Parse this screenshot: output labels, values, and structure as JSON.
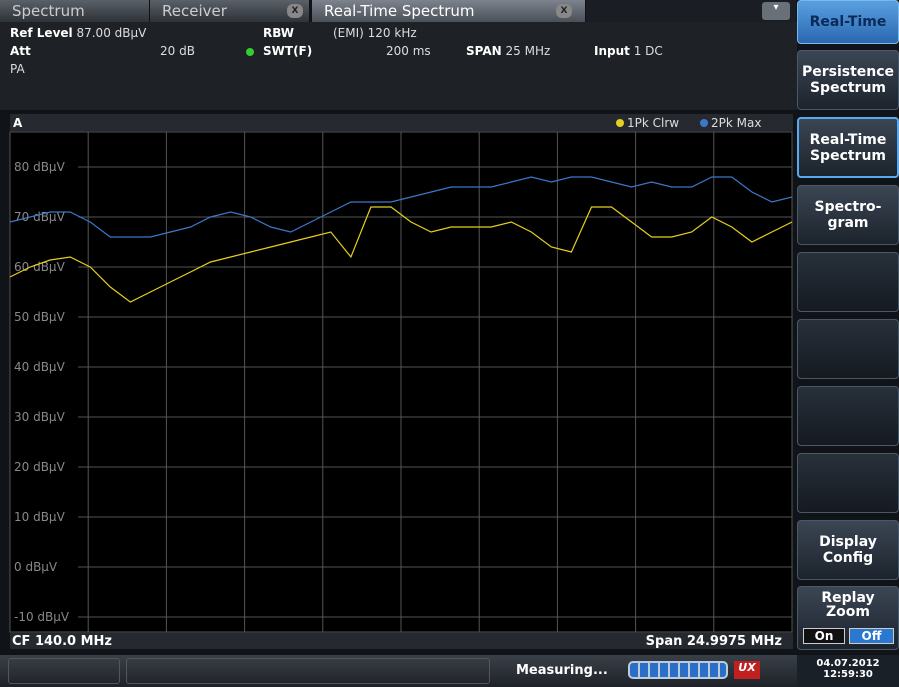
{
  "tabs": [
    "Spectrum",
    "Receiver",
    "Real-Time Spectrum"
  ],
  "settings": [
    {
      "label": "Ref Level",
      "value": "87.00 dBµV"
    },
    {
      "label": "Att",
      "value": "20 dB"
    },
    {
      "label": "RBW",
      "value": "(EMI) 120 kHz"
    },
    {
      "label": "SWT(F)",
      "value": "200 ms"
    },
    {
      "label": "SPAN",
      "value": "25 MHz"
    },
    {
      "label": "Input",
      "value": "1 DC"
    }
  ],
  "preamp": "PA",
  "chart_data": {
    "type": "line",
    "title": "A",
    "series": [
      {
        "name": "1Pk Clrw",
        "color": "#e6cf1e",
        "values": [
          58,
          60,
          61.4,
          62,
          60,
          56,
          53,
          55,
          57,
          59,
          61,
          62,
          63,
          64,
          65,
          66,
          67,
          62,
          72,
          72,
          69,
          67,
          68,
          68,
          68,
          69,
          67,
          64,
          63,
          72,
          72,
          69,
          66,
          66,
          67,
          70,
          68,
          65,
          67,
          69
        ]
      },
      {
        "name": "2Pk Max",
        "color": "#3b78c9",
        "values": [
          69,
          70,
          71,
          71,
          69,
          66,
          66,
          66,
          67,
          68,
          70,
          71,
          70,
          68,
          67,
          69,
          71,
          73,
          73,
          73,
          74,
          75,
          76,
          76,
          76,
          77,
          78,
          77,
          78,
          78,
          77,
          76,
          77,
          76,
          76,
          78,
          78,
          75,
          73,
          74
        ]
      }
    ],
    "ylim": [
      -13,
      87
    ],
    "yticks": [
      {
        "value": 80,
        "label": "80 dBµV"
      },
      {
        "value": 70,
        "label": "70 dBµV"
      },
      {
        "value": 60,
        "label": "60 dBµV"
      },
      {
        "value": 50,
        "label": "50 dBµV"
      },
      {
        "value": 40,
        "label": "40 dBµV"
      },
      {
        "value": 30,
        "label": "30 dBµV"
      },
      {
        "value": 20,
        "label": "20 dBµV"
      },
      {
        "value": 10,
        "label": "10 dBµV"
      },
      {
        "value": 0,
        "label": "0 dBµV"
      },
      {
        "value": -10,
        "label": "-10 dBµV"
      }
    ],
    "grid": true
  },
  "footer_left": "CF 140.0 MHz",
  "footer_right": "Span 24.9975 MHz",
  "menu_title": "Real-Time",
  "softkeys": [
    [
      "Persistence",
      "Spectrum"
    ],
    [
      "Real-Time",
      "Spectrum"
    ],
    [
      "Spectro-",
      "gram"
    ],
    [
      "Display",
      "Config"
    ],
    [
      "Replay",
      "Zoom"
    ]
  ],
  "zoom_options": [
    "On",
    "Off"
  ],
  "status": {
    "message": "Measuring...",
    "date": "04.07.2012",
    "time": "12:59:30"
  }
}
